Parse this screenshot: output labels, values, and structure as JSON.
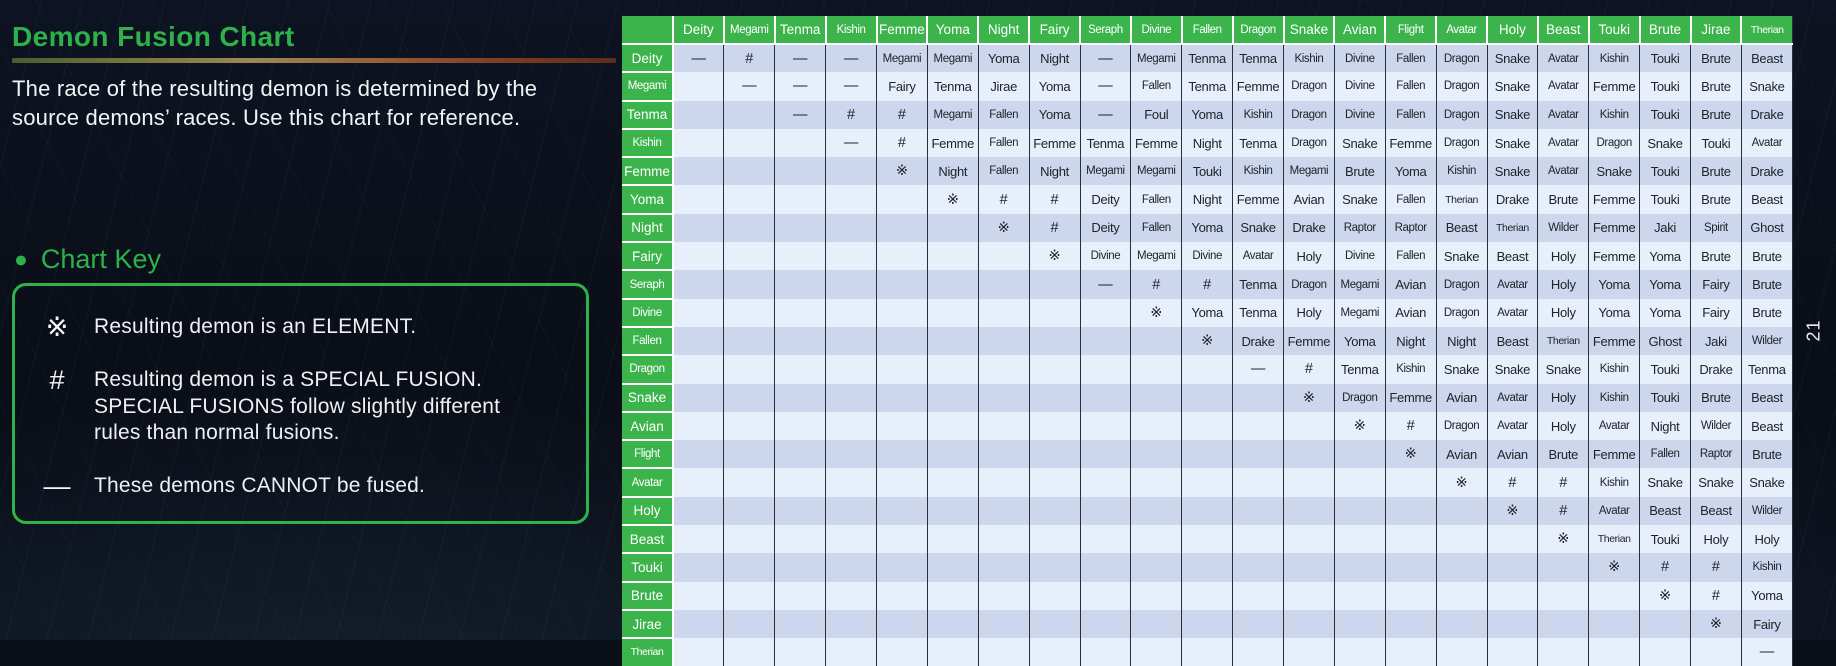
{
  "page": {
    "number": "21"
  },
  "header": {
    "title": "Demon Fusion Chart",
    "description": "The race of the resulting demon is determined by the\nsource demons’ races. Use this chart for reference."
  },
  "chart_key": {
    "heading": "Chart Key",
    "bullet_icon": "●",
    "items": [
      {
        "symbol": "※",
        "text": "Resulting demon is an ELEMENT."
      },
      {
        "symbol": "#",
        "text": "Resulting demon is a SPECIAL FUSION.\nSPECIAL FUSIONS follow slightly different\nrules than normal fusions."
      },
      {
        "symbol": "—",
        "text": "These demons CANNOT be fused."
      }
    ]
  },
  "colors": {
    "accent_green": "#2db24a",
    "table_header_green": "#3cb44c",
    "row_stripe_dark": "#ccd6ed",
    "row_stripe_light": "#e7effb",
    "background": "#0a0e17",
    "cell_text": "#20232a",
    "key_border_green": "#2eb34a"
  },
  "chart_data": {
    "type": "table",
    "title": "Demon Fusion Chart",
    "symbol_legend": {
      "※": "ELEMENT result",
      "#": "SPECIAL FUSION",
      "—": "cannot be fused",
      "": "not applicable (lower triangle blank)"
    },
    "columns": [
      "Deity",
      "Megami",
      "Tenma",
      "Kishin",
      "Femme",
      "Yoma",
      "Night",
      "Fairy",
      "Seraph",
      "Divine",
      "Fallen",
      "Dragon",
      "Snake",
      "Avian",
      "Flight",
      "Avatar",
      "Holy",
      "Beast",
      "Touki",
      "Brute",
      "Jirae",
      "Therian"
    ],
    "rows": [
      "Deity",
      "Megami",
      "Tenma",
      "Kishin",
      "Femme",
      "Yoma",
      "Night",
      "Fairy",
      "Seraph",
      "Divine",
      "Fallen",
      "Dragon",
      "Snake",
      "Avian",
      "Flight",
      "Avatar",
      "Holy",
      "Beast",
      "Touki",
      "Brute",
      "Jirae",
      "Therian"
    ],
    "cells": [
      [
        "—",
        "#",
        "—",
        "—",
        "Megami",
        "Megami",
        "Yoma",
        "Night",
        "—",
        "Megami",
        "Tenma",
        "Tenma",
        "Kishin",
        "Divine",
        "Fallen",
        "Dragon",
        "Snake",
        "Avatar",
        "Kishin",
        "Touki",
        "Brute",
        "Beast"
      ],
      [
        "",
        "—",
        "—",
        "—",
        "Fairy",
        "Tenma",
        "Jirae",
        "Yoma",
        "—",
        "Fallen",
        "Tenma",
        "Femme",
        "Dragon",
        "Divine",
        "Fallen",
        "Dragon",
        "Snake",
        "Avatar",
        "Femme",
        "Touki",
        "Brute",
        "Snake"
      ],
      [
        "",
        "",
        "—",
        "#",
        "#",
        "Megami",
        "Fallen",
        "Yoma",
        "—",
        "Foul",
        "Yoma",
        "Kishin",
        "Dragon",
        "Divine",
        "Fallen",
        "Dragon",
        "Snake",
        "Avatar",
        "Kishin",
        "Touki",
        "Brute",
        "Drake"
      ],
      [
        "",
        "",
        "",
        "—",
        "#",
        "Femme",
        "Fallen",
        "Femme",
        "Tenma",
        "Femme",
        "Night",
        "Tenma",
        "Dragon",
        "Snake",
        "Femme",
        "Dragon",
        "Snake",
        "Avatar",
        "Dragon",
        "Snake",
        "Touki",
        "Avatar"
      ],
      [
        "",
        "",
        "",
        "",
        "※",
        "Night",
        "Fallen",
        "Night",
        "Megami",
        "Megami",
        "Touki",
        "Kishin",
        "Megami",
        "Brute",
        "Yoma",
        "Kishin",
        "Snake",
        "Avatar",
        "Snake",
        "Touki",
        "Brute",
        "Drake"
      ],
      [
        "",
        "",
        "",
        "",
        "",
        "※",
        "#",
        "#",
        "Deity",
        "Fallen",
        "Night",
        "Femme",
        "Avian",
        "Snake",
        "Fallen",
        "Therian",
        "Drake",
        "Brute",
        "Femme",
        "Touki",
        "Brute",
        "Beast"
      ],
      [
        "",
        "",
        "",
        "",
        "",
        "",
        "※",
        "#",
        "Deity",
        "Fallen",
        "Yoma",
        "Snake",
        "Drake",
        "Raptor",
        "Raptor",
        "Beast",
        "Therian",
        "Wilder",
        "Femme",
        "Jaki",
        "Spirit",
        "Ghost"
      ],
      [
        "",
        "",
        "",
        "",
        "",
        "",
        "",
        "※",
        "Divine",
        "Megami",
        "Divine",
        "Avatar",
        "Holy",
        "Divine",
        "Fallen",
        "Snake",
        "Beast",
        "Holy",
        "Femme",
        "Yoma",
        "Brute",
        "Brute"
      ],
      [
        "",
        "",
        "",
        "",
        "",
        "",
        "",
        "",
        "—",
        "#",
        "#",
        "Tenma",
        "Dragon",
        "Megami",
        "Avian",
        "Dragon",
        "Avatar",
        "Holy",
        "Yoma",
        "Yoma",
        "Fairy",
        "Brute"
      ],
      [
        "",
        "",
        "",
        "",
        "",
        "",
        "",
        "",
        "",
        "※",
        "Yoma",
        "Tenma",
        "Holy",
        "Megami",
        "Avian",
        "Dragon",
        "Avatar",
        "Holy",
        "Yoma",
        "Yoma",
        "Fairy",
        "Brute"
      ],
      [
        "",
        "",
        "",
        "",
        "",
        "",
        "",
        "",
        "",
        "",
        "※",
        "Drake",
        "Femme",
        "Yoma",
        "Night",
        "Night",
        "Beast",
        "Therian",
        "Femme",
        "Ghost",
        "Jaki",
        "Wilder"
      ],
      [
        "",
        "",
        "",
        "",
        "",
        "",
        "",
        "",
        "",
        "",
        "",
        "—",
        "#",
        "Tenma",
        "Kishin",
        "Snake",
        "Snake",
        "Snake",
        "Kishin",
        "Touki",
        "Drake",
        "Tenma"
      ],
      [
        "",
        "",
        "",
        "",
        "",
        "",
        "",
        "",
        "",
        "",
        "",
        "",
        "※",
        "Dragon",
        "Femme",
        "Avian",
        "Avatar",
        "Holy",
        "Kishin",
        "Touki",
        "Brute",
        "Beast"
      ],
      [
        "",
        "",
        "",
        "",
        "",
        "",
        "",
        "",
        "",
        "",
        "",
        "",
        "",
        "※",
        "#",
        "Dragon",
        "Avatar",
        "Holy",
        "Avatar",
        "Night",
        "Wilder",
        "Beast"
      ],
      [
        "",
        "",
        "",
        "",
        "",
        "",
        "",
        "",
        "",
        "",
        "",
        "",
        "",
        "",
        "※",
        "Avian",
        "Avian",
        "Brute",
        "Femme",
        "Fallen",
        "Raptor",
        "Brute"
      ],
      [
        "",
        "",
        "",
        "",
        "",
        "",
        "",
        "",
        "",
        "",
        "",
        "",
        "",
        "",
        "",
        "※",
        "#",
        "#",
        "Kishin",
        "Snake",
        "Snake",
        "Snake"
      ],
      [
        "",
        "",
        "",
        "",
        "",
        "",
        "",
        "",
        "",
        "",
        "",
        "",
        "",
        "",
        "",
        "",
        "※",
        "#",
        "Avatar",
        "Beast",
        "Beast",
        "Wilder"
      ],
      [
        "",
        "",
        "",
        "",
        "",
        "",
        "",
        "",
        "",
        "",
        "",
        "",
        "",
        "",
        "",
        "",
        "",
        "※",
        "Therian",
        "Touki",
        "Holy",
        "Holy"
      ],
      [
        "",
        "",
        "",
        "",
        "",
        "",
        "",
        "",
        "",
        "",
        "",
        "",
        "",
        "",
        "",
        "",
        "",
        "",
        "※",
        "#",
        "#",
        "Kishin"
      ],
      [
        "",
        "",
        "",
        "",
        "",
        "",
        "",
        "",
        "",
        "",
        "",
        "",
        "",
        "",
        "",
        "",
        "",
        "",
        "",
        "※",
        "#",
        "Yoma"
      ],
      [
        "",
        "",
        "",
        "",
        "",
        "",
        "",
        "",
        "",
        "",
        "",
        "",
        "",
        "",
        "",
        "",
        "",
        "",
        "",
        "",
        "※",
        "Fairy"
      ],
      [
        "",
        "",
        "",
        "",
        "",
        "",
        "",
        "",
        "",
        "",
        "",
        "",
        "",
        "",
        "",
        "",
        "",
        "",
        "",
        "",
        "",
        "—"
      ]
    ]
  }
}
